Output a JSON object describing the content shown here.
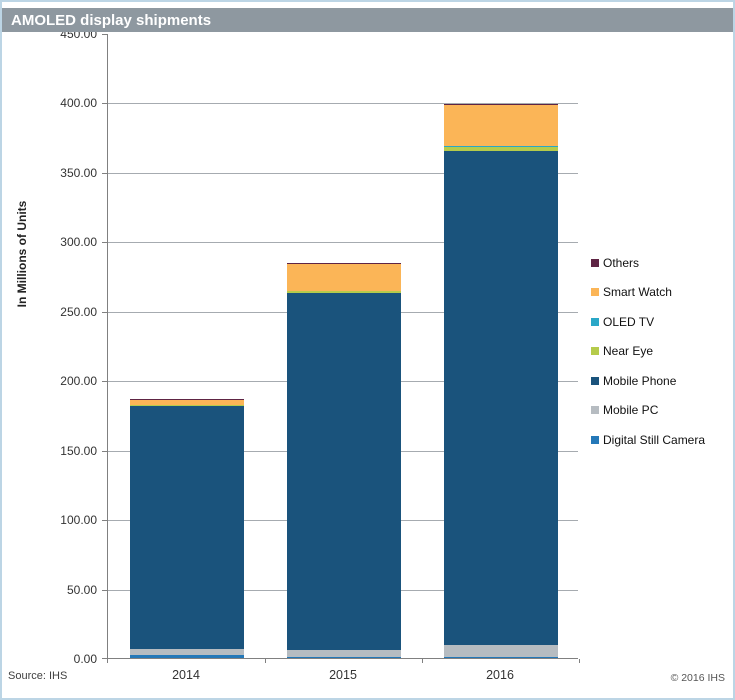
{
  "title_bar": {
    "title": "AMOLED display shipments"
  },
  "footer": {
    "source": "Source: IHS",
    "copyright": "© 2016 IHS"
  },
  "colors": {
    "title_bar_bg": "#8E98A0",
    "title_text": "#FFFFFF",
    "frame_border": "#BCD5E5",
    "gridline": "#A6ABB0",
    "axis": "#808080"
  },
  "chart_data": {
    "type": "bar",
    "stacked": true,
    "title": "AMOLED display shipments",
    "xlabel": "",
    "ylabel": "In Millions of Units",
    "categories": [
      "2014",
      "2015",
      "2016"
    ],
    "series": [
      {
        "name": "Digital Still Camera",
        "color": "#2478B8",
        "values": [
          2.2,
          0.7,
          0.4
        ]
      },
      {
        "name": "Mobile PC",
        "color": "#B6BCC1",
        "values": [
          4.3,
          5.3,
          8.5
        ]
      },
      {
        "name": "Mobile Phone",
        "color": "#1A537C",
        "values": [
          175.0,
          257.0,
          356.0
        ]
      },
      {
        "name": "Near Eye",
        "color": "#B5CB4B",
        "values": [
          0.7,
          1.5,
          3.0
        ]
      },
      {
        "name": "OLED TV",
        "color": "#2AA7C7",
        "values": [
          0.2,
          0.3,
          0.9
        ]
      },
      {
        "name": "Smart Watch",
        "color": "#FBB557",
        "values": [
          3.6,
          19.5,
          29.5
        ]
      },
      {
        "name": "Others",
        "color": "#5E2444",
        "values": [
          0.7,
          0.8,
          1.0
        ]
      }
    ],
    "totals": [
      186.7,
      285.1,
      399.3
    ],
    "ylim": [
      0,
      450
    ],
    "ytick_step": 50,
    "ytick_format": "two_decimals",
    "grid": true,
    "legend_position": "right",
    "legend_order": "reverse_of_series"
  }
}
